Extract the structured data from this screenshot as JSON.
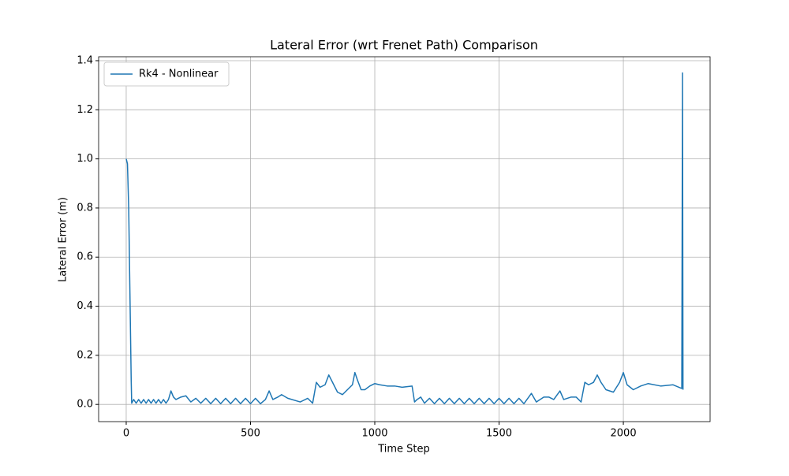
{
  "chart_data": {
    "type": "line",
    "title": "Lateral Error (wrt Frenet Path) Comparison",
    "x_label": "Time Step",
    "y_label": "Lateral Error (m)",
    "x": [
      0,
      5,
      10,
      15,
      20,
      22,
      30,
      40,
      50,
      60,
      70,
      80,
      90,
      100,
      110,
      120,
      130,
      140,
      150,
      160,
      170,
      180,
      190,
      200,
      220,
      240,
      260,
      280,
      300,
      320,
      340,
      360,
      380,
      400,
      420,
      440,
      460,
      480,
      500,
      520,
      540,
      560,
      575,
      590,
      610,
      625,
      650,
      700,
      730,
      750,
      765,
      780,
      800,
      815,
      830,
      850,
      870,
      890,
      910,
      920,
      930,
      945,
      960,
      980,
      1000,
      1020,
      1050,
      1080,
      1110,
      1150,
      1160,
      1170,
      1185,
      1200,
      1220,
      1240,
      1260,
      1280,
      1300,
      1320,
      1340,
      1360,
      1380,
      1400,
      1420,
      1440,
      1460,
      1480,
      1500,
      1520,
      1540,
      1560,
      1580,
      1600,
      1630,
      1650,
      1680,
      1700,
      1720,
      1745,
      1760,
      1790,
      1810,
      1830,
      1845,
      1860,
      1880,
      1895,
      1910,
      1930,
      1960,
      1985,
      2000,
      2015,
      2040,
      2070,
      2100,
      2150,
      2200,
      2235,
      2238,
      2240
    ],
    "series": [
      {
        "name": "Rk4 - Nonlinear",
        "color": "#1f77b4",
        "values": [
          1.0,
          0.98,
          0.8,
          0.45,
          0.1,
          0.005,
          0.02,
          0.005,
          0.02,
          0.005,
          0.02,
          0.005,
          0.02,
          0.005,
          0.02,
          0.005,
          0.02,
          0.005,
          0.02,
          0.005,
          0.02,
          0.055,
          0.03,
          0.02,
          0.03,
          0.035,
          0.01,
          0.025,
          0.005,
          0.025,
          0.003,
          0.025,
          0.003,
          0.025,
          0.003,
          0.025,
          0.003,
          0.025,
          0.003,
          0.025,
          0.003,
          0.02,
          0.055,
          0.02,
          0.03,
          0.04,
          0.025,
          0.01,
          0.025,
          0.005,
          0.09,
          0.07,
          0.08,
          0.12,
          0.09,
          0.05,
          0.04,
          0.06,
          0.08,
          0.13,
          0.1,
          0.06,
          0.06,
          0.075,
          0.085,
          0.08,
          0.075,
          0.075,
          0.07,
          0.075,
          0.01,
          0.02,
          0.03,
          0.005,
          0.025,
          0.003,
          0.025,
          0.003,
          0.025,
          0.003,
          0.025,
          0.003,
          0.025,
          0.003,
          0.025,
          0.003,
          0.025,
          0.003,
          0.025,
          0.003,
          0.025,
          0.003,
          0.025,
          0.003,
          0.045,
          0.01,
          0.03,
          0.03,
          0.02,
          0.055,
          0.02,
          0.03,
          0.03,
          0.01,
          0.09,
          0.08,
          0.09,
          0.12,
          0.09,
          0.06,
          0.05,
          0.09,
          0.13,
          0.08,
          0.06,
          0.075,
          0.085,
          0.075,
          0.08,
          0.065,
          1.35,
          0.06
        ]
      }
    ],
    "xlim": [
      -111,
      2349
    ],
    "ylim": [
      -0.07,
      1.416
    ],
    "xticks": [
      0,
      500,
      1000,
      1500,
      2000
    ],
    "yticks": [
      {
        "value": 0,
        "label": "0.0"
      },
      0.2,
      0.4,
      0.6,
      0.8,
      {
        "value": 1,
        "label": "1.0"
      },
      1.2,
      1.4
    ],
    "grid": true,
    "legend": "upper-left"
  }
}
